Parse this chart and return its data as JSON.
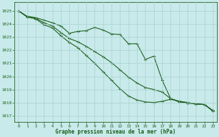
{
  "background_color": "#c8eaea",
  "grid_color": "#a8d0d0",
  "line_color": "#1a5c1a",
  "xlabel": "Graphe pression niveau de la mer (hPa)",
  "ylim": [
    1016.5,
    1025.7
  ],
  "xlim": [
    -0.5,
    23.5
  ],
  "yticks": [
    1017,
    1018,
    1019,
    1020,
    1021,
    1022,
    1023,
    1024,
    1025
  ],
  "xticks": [
    0,
    1,
    2,
    3,
    4,
    5,
    6,
    7,
    8,
    9,
    10,
    11,
    12,
    13,
    14,
    15,
    16,
    17,
    18,
    19,
    20,
    21,
    22,
    23
  ],
  "series1": [
    1025.0,
    1024.6,
    1024.5,
    1024.3,
    1024.1,
    1023.85,
    1023.3,
    1023.45,
    1023.5,
    1023.75,
    1023.55,
    1023.25,
    1023.2,
    1022.5,
    1022.5,
    1021.3,
    1021.55,
    1019.7,
    1018.3,
    1018.1,
    1018.0,
    1017.9,
    1017.85,
    1017.4
  ],
  "series2": [
    1025.0,
    1024.55,
    1024.45,
    1024.1,
    1023.85,
    1023.35,
    1022.9,
    1022.65,
    1022.3,
    1021.9,
    1021.5,
    1021.05,
    1020.5,
    1019.95,
    1019.5,
    1019.15,
    1019.0,
    1018.8,
    1018.3,
    1018.05,
    1017.95,
    1017.9,
    1017.85,
    1017.35
  ],
  "series3": [
    1025.0,
    1024.55,
    1024.4,
    1023.95,
    1023.7,
    1023.1,
    1022.6,
    1022.2,
    1021.6,
    1021.0,
    1020.35,
    1019.7,
    1019.05,
    1018.5,
    1018.2,
    1018.05,
    1018.0,
    1018.1,
    1018.25,
    1018.1,
    1018.0,
    1017.9,
    1017.85,
    1017.35
  ]
}
